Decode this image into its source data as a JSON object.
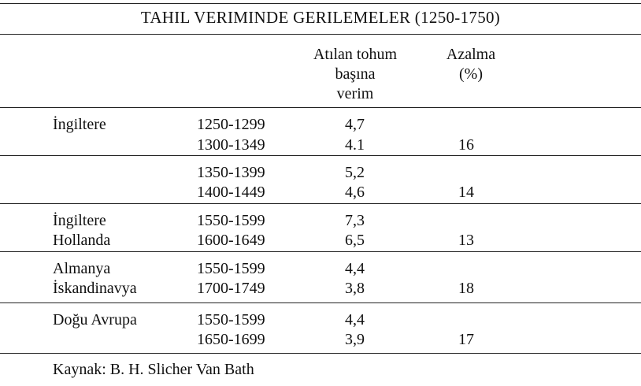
{
  "title": "TAHIL VERIMINDE GERILEMELER (1250-1750)",
  "headers": {
    "yield_line1": "Atılan tohum",
    "yield_line2": "başına",
    "yield_line3": "verim",
    "decline_line1": "Azalma",
    "decline_line2": "(%)"
  },
  "groups": [
    {
      "rows": [
        {
          "region": "İngiltere",
          "period": "1250-1299",
          "yield": "4,7"
        },
        {
          "region": "",
          "period": "1300-1349",
          "yield": "4.1"
        }
      ],
      "decline": "16"
    },
    {
      "rows": [
        {
          "region": "",
          "period": "1350-1399",
          "yield": "5,2"
        },
        {
          "region": "",
          "period": "1400-1449",
          "yield": "4,6"
        }
      ],
      "decline": "14"
    },
    {
      "rows": [
        {
          "region": "İngiltere",
          "period": "1550-1599",
          "yield": "7,3"
        },
        {
          "region": "Hollanda",
          "period": "1600-1649",
          "yield": "6,5"
        }
      ],
      "decline": "13"
    },
    {
      "rows": [
        {
          "region": "Almanya",
          "period": "1550-1599",
          "yield": "4,4"
        },
        {
          "region": "İskandinavya",
          "period": "1700-1749",
          "yield": "3,8"
        }
      ],
      "decline": "18"
    },
    {
      "rows": [
        {
          "region": "Doğu Avrupa",
          "period": "1550-1599",
          "yield": "4,4"
        },
        {
          "region": "",
          "period": "1650-1699",
          "yield": "3,9"
        }
      ],
      "decline": "17"
    }
  ],
  "source": "Kaynak: B. H. Slicher Van Bath"
}
